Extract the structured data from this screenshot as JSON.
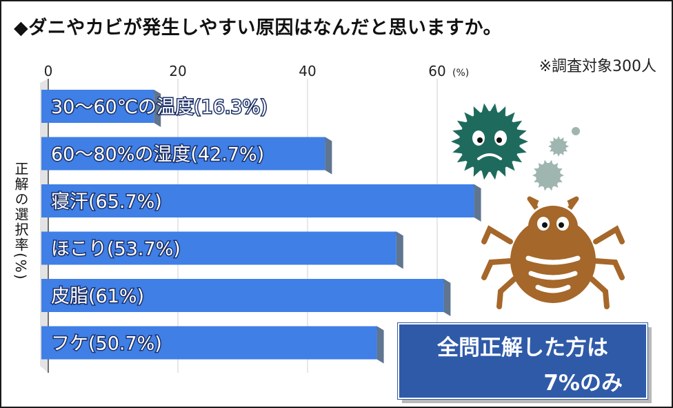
{
  "title": "◆ダニやカビが発生しやすい原因はなんだと思いますか。",
  "note": "※調査対象300人",
  "summary": {
    "line1": "全問正解した方は",
    "line2": "7%のみ"
  },
  "colors": {
    "bar_front": "#3f7fe6",
    "bar_top": "#2a5cb3",
    "bar_side": "#5f7590",
    "summary_bg": "#2f5aa8",
    "virus_dark": "#1e6b5e",
    "spore_light": "#9fb5b0",
    "mite_brown": "#a5672a"
  },
  "icons": [
    "virus-icon",
    "spore-icon",
    "dust-mite-icon"
  ],
  "chart_data": {
    "type": "bar",
    "orientation": "horizontal",
    "ylabel": "正解の選択率(%)",
    "x_unit_label": "(%)",
    "xlim": [
      0,
      60
    ],
    "xticks": [
      0,
      20,
      40,
      60
    ],
    "grid": true,
    "categories": [
      "30〜60℃の温度(16.3%)",
      "60〜80%の湿度(42.7%)",
      "寝汗(65.7%)",
      "ほこり(53.7%)",
      "皮脂(61%)",
      "フケ(50.7%)"
    ],
    "values": [
      16.3,
      42.7,
      65.7,
      53.7,
      61,
      50.7
    ]
  }
}
